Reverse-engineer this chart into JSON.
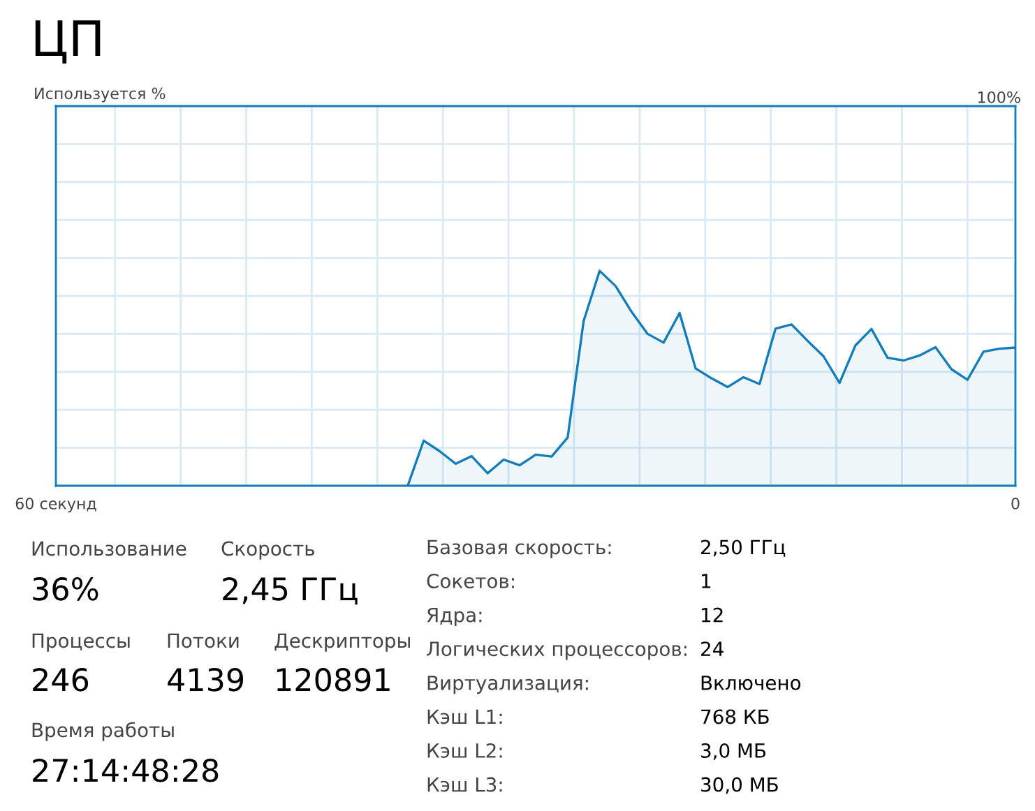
{
  "chart_data": {
    "type": "area",
    "title": "ЦП",
    "ylabel": "Используется %",
    "x": [
      38,
      37,
      36,
      35,
      34,
      33,
      32,
      31,
      30,
      29,
      28,
      27,
      26,
      25,
      24,
      23,
      22,
      21,
      20,
      19,
      18,
      17,
      16,
      15,
      14,
      13,
      12,
      11,
      10,
      9,
      8,
      7,
      6,
      5,
      4,
      3,
      2,
      1,
      0
    ],
    "series": [
      {
        "color": "#117dbb",
        "values": [
          0,
          11.9,
          9.1,
          5.8,
          7.8,
          3.3,
          6.9,
          5.4,
          8.2,
          7.7,
          12.7,
          43.4,
          56.6,
          52.6,
          45.8,
          40,
          37.7,
          45.5,
          30.9,
          28.3,
          26,
          28.6,
          26.8,
          41.4,
          42.5,
          38.2,
          34.1,
          27.1,
          37,
          41.3,
          33.7,
          33,
          34.3,
          36.5,
          30.7,
          27.9,
          35.3,
          36.1,
          36.4
        ]
      }
    ],
    "xlim": [
      60,
      0
    ],
    "ylim": [
      0,
      100
    ],
    "xticks": [
      {
        "value": 60,
        "label": "60 секунд"
      },
      {
        "value": 56.3,
        "label": null
      },
      {
        "value": 52.2,
        "label": null
      },
      {
        "value": 48.1,
        "label": null
      },
      {
        "value": 44,
        "label": null
      },
      {
        "value": 39.9,
        "label": null
      },
      {
        "value": 35.8,
        "label": null
      },
      {
        "value": 31.7,
        "label": null
      },
      {
        "value": 27.6,
        "label": null
      },
      {
        "value": 23.5,
        "label": null
      },
      {
        "value": 19.4,
        "label": null
      },
      {
        "value": 15.3,
        "label": null
      },
      {
        "value": 11.2,
        "label": null
      },
      {
        "value": 7.1,
        "label": null
      },
      {
        "value": 3,
        "label": null
      },
      0
    ],
    "yticks": [
      {
        "value": 0,
        "label": null
      },
      {
        "value": 10,
        "label": null
      },
      {
        "value": 20,
        "label": null
      },
      {
        "value": 30,
        "label": null
      },
      {
        "value": 40,
        "label": null
      },
      {
        "value": 50,
        "label": null
      },
      {
        "value": 60,
        "label": null
      },
      {
        "value": 70,
        "label": null
      },
      {
        "value": 80,
        "label": null
      },
      {
        "value": 90,
        "label": null
      },
      {
        "value": 100,
        "label": "100%"
      }
    ],
    "grid": true,
    "marker": "none",
    "line_style": "solid",
    "annotations": [
      "Использование",
      "36%",
      "Скорость",
      "2,45 ГГц",
      "Процессы",
      "246",
      "Потоки",
      "4139",
      "Дескрипторы",
      "120891",
      "Время работы",
      "27:14:48:28",
      "Базовая скорость:",
      "2,50 ГГц",
      "Сокетов:",
      "1",
      "Ядра:",
      "12",
      "Логических процессоров:",
      "24",
      "Виртуализация:",
      "Включено",
      "Кэш L1:",
      "768 КБ",
      "Кэш L2:",
      "3,0 МБ",
      "Кэш L3:",
      "30,0 МБ"
    ]
  }
}
